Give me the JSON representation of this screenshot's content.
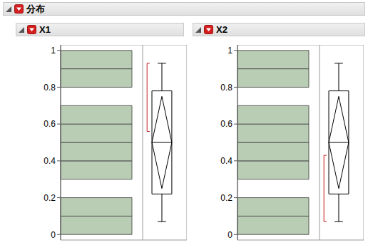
{
  "title": "分布",
  "chart_data": [
    {
      "type": "histogram",
      "title": "X1",
      "orientation": "horizontal",
      "bins": [
        0,
        0.1,
        0.2,
        0.3,
        0.4,
        0.5,
        0.6,
        0.7,
        0.8,
        0.9,
        1
      ],
      "counts": [
        1,
        1,
        0,
        1,
        1,
        1,
        1,
        0,
        1,
        1
      ],
      "xlim": [
        0,
        1.15
      ],
      "ylim": [
        -0.03,
        1.03
      ],
      "yticks": [
        0,
        0.2,
        0.4,
        0.6,
        0.8,
        1
      ],
      "tick_labels": "y",
      "color": "#b9ccb4",
      "box": {
        "min": 0.07,
        "q1": 0.22,
        "median": 0.5,
        "q3": 0.78,
        "max": 0.93
      },
      "mean": 0.5,
      "mean_ci": [
        0.25,
        0.75
      ],
      "shortest_half": [
        0.56,
        0.93
      ]
    },
    {
      "type": "histogram",
      "title": "X2",
      "orientation": "horizontal",
      "bins": [
        0,
        0.1,
        0.2,
        0.3,
        0.4,
        0.5,
        0.6,
        0.7,
        0.8,
        0.9,
        1
      ],
      "counts": [
        1,
        1,
        0,
        1,
        1,
        1,
        1,
        0,
        1,
        1
      ],
      "xlim": [
        0,
        1.15
      ],
      "ylim": [
        -0.03,
        1.03
      ],
      "yticks": [
        0,
        0.2,
        0.4,
        0.6,
        0.8,
        1
      ],
      "tick_labels": "y",
      "color": "#b9ccb4",
      "box": {
        "min": 0.07,
        "q1": 0.22,
        "median": 0.5,
        "q3": 0.78,
        "max": 0.93
      },
      "mean": 0.5,
      "mean_ci": [
        0.25,
        0.75
      ],
      "shortest_half": [
        0.07,
        0.43
      ]
    }
  ]
}
